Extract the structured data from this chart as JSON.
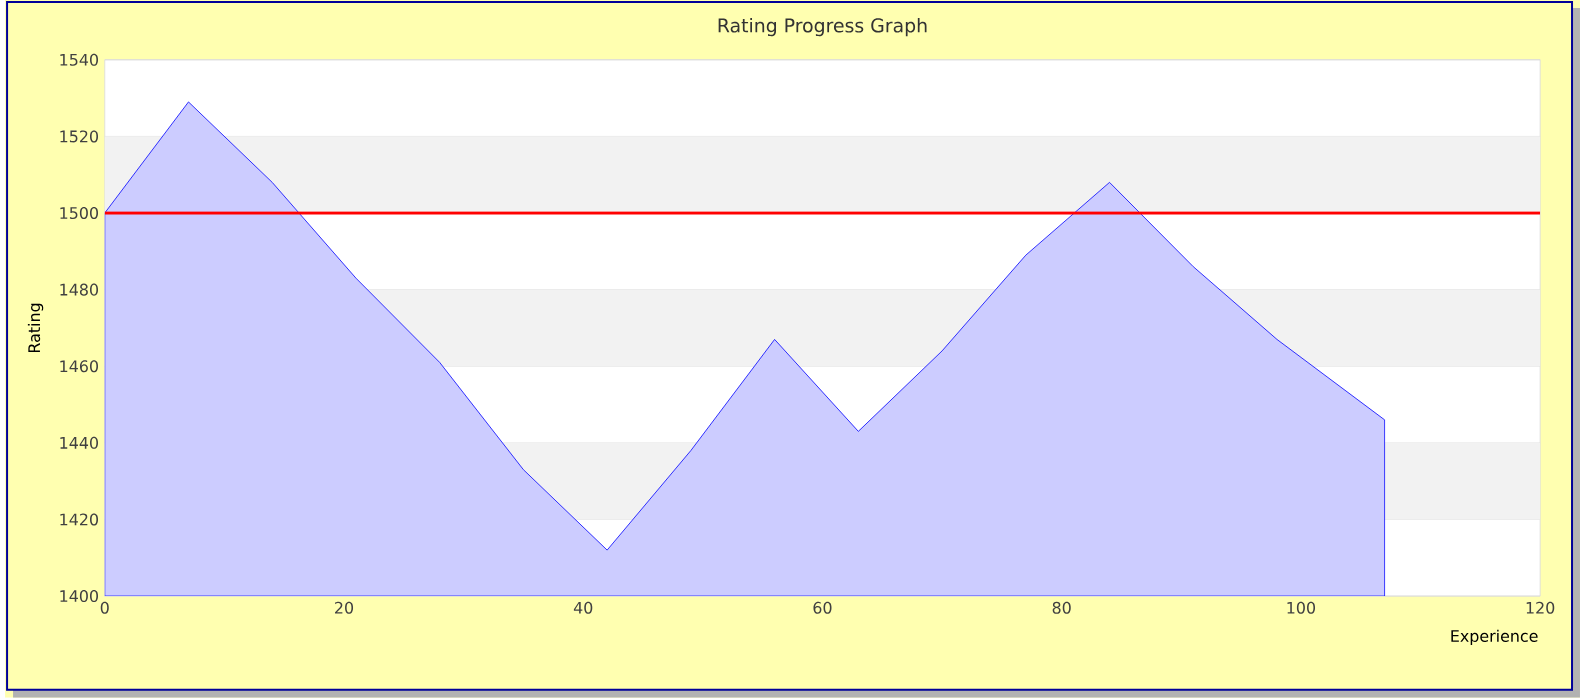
{
  "chart_data": {
    "type": "area",
    "title": "Rating Progress Graph",
    "xlabel": "Experience",
    "ylabel": "Rating",
    "x": [
      0,
      7,
      14,
      21,
      28,
      35,
      42,
      49,
      56,
      63,
      70,
      77,
      84,
      91,
      98,
      107
    ],
    "series": [
      {
        "color": "#ccccff",
        "values": [
          1500,
          1529,
          1508,
          1483,
          1461,
          1433,
          1412,
          1438,
          1467,
          1443,
          1464,
          1489,
          1508,
          1486,
          1467,
          1446
        ]
      }
    ],
    "xlim": [
      0,
      120
    ],
    "xticks": [
      0,
      20,
      40,
      60,
      80,
      100,
      120
    ],
    "ylim": [
      1400,
      1540
    ],
    "yticks": [
      1400,
      1420,
      1440,
      1460,
      1480,
      1500,
      1520,
      1540
    ],
    "grid": "y",
    "ref_lines": [
      {
        "axis": "y",
        "value": 1500,
        "color": "#ff0000"
      }
    ]
  }
}
